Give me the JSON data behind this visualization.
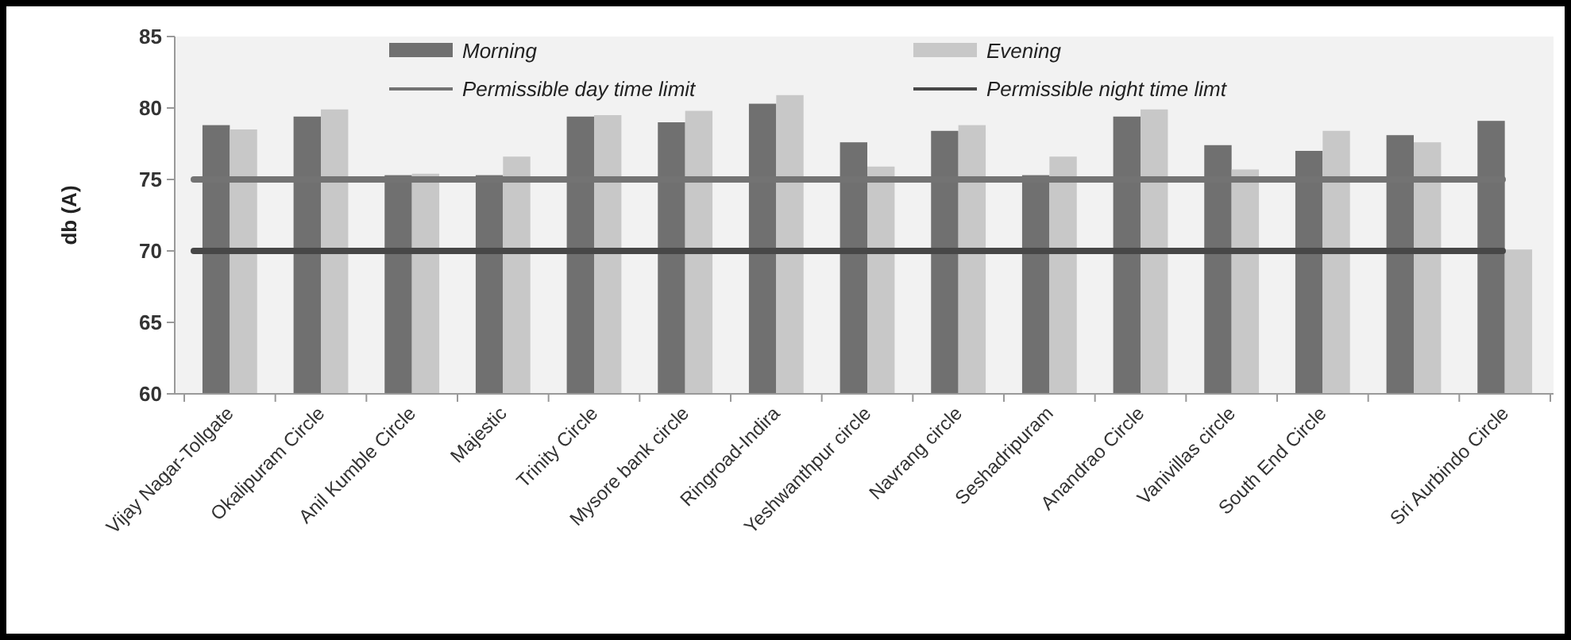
{
  "chart_data": {
    "type": "bar",
    "ylabel": "db (A)",
    "categories": [
      "Vijay Nagar-Tollgate",
      "Okalipuram Circle",
      "Anil Kumble Circle",
      "Majestic",
      "Trinity Circle",
      "Mysore bank circle",
      "Ringroad-Indira",
      "Yeshwanthpur circle",
      "Navrang circle",
      "Seshadripuram",
      "Anandrao Circle",
      "Vanivillas circle",
      "South End Circle",
      null,
      "Sri Aurbindo Circle"
    ],
    "series": [
      {
        "name": "Morning",
        "color": "#707070",
        "values": [
          78.8,
          79.4,
          75.3,
          75.3,
          79.4,
          79.0,
          80.3,
          77.6,
          78.4,
          75.3,
          79.4,
          77.4,
          77.0,
          78.1,
          79.1
        ]
      },
      {
        "name": "Evening",
        "color": "#c8c8c8",
        "values": [
          78.5,
          79.9,
          75.4,
          76.6,
          79.5,
          79.8,
          80.9,
          75.9,
          78.8,
          76.6,
          79.9,
          75.7,
          78.4,
          77.6,
          70.1
        ]
      }
    ],
    "ref_lines": [
      {
        "axis": "y",
        "value": 75,
        "label": "Permissible day time limit",
        "color": "#737373"
      },
      {
        "axis": "y",
        "value": 70,
        "label": "Permissible night time limt",
        "color": "#474747"
      }
    ],
    "ylim": [
      60,
      85
    ],
    "yticks": [
      60,
      65,
      70,
      75,
      80,
      85
    ],
    "legend": "top",
    "grid": false
  }
}
